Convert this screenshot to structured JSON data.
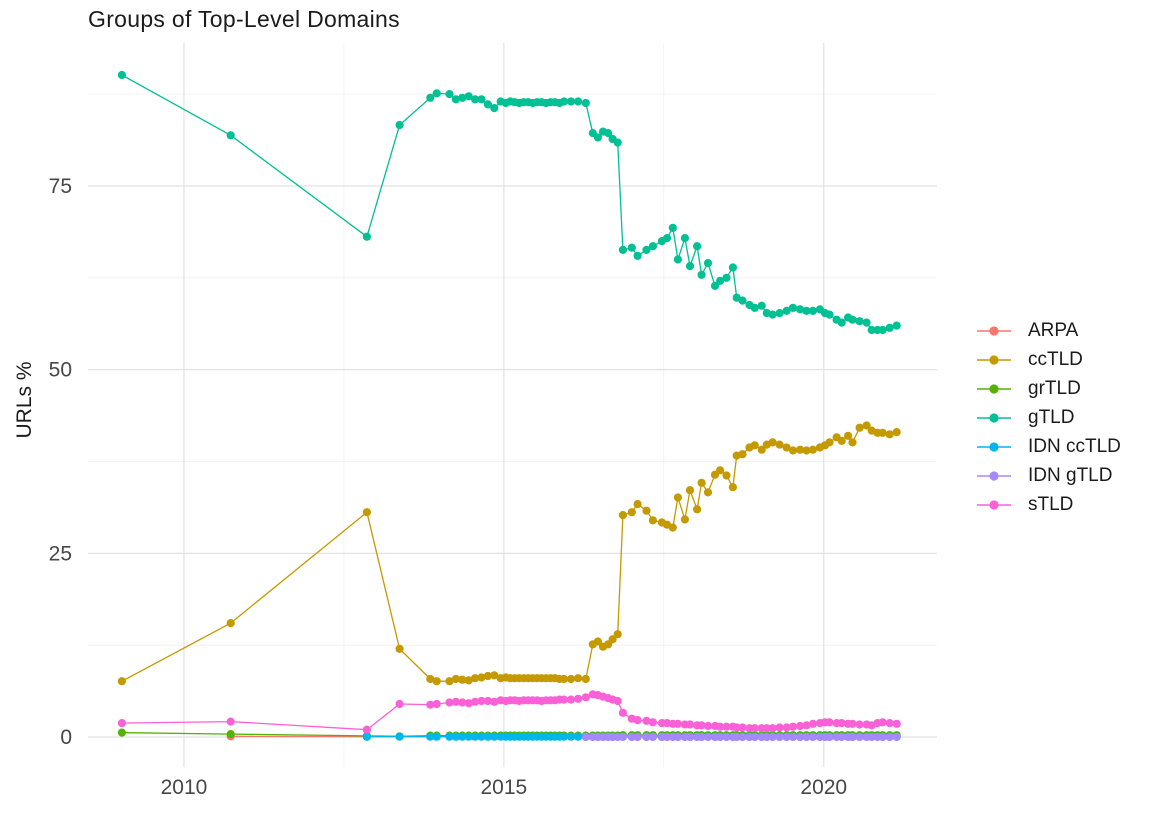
{
  "chart_data": {
    "type": "line",
    "title": "Groups of Top-Level Domains",
    "xlabel": "",
    "ylabel": "URLs %",
    "legend_position": "right",
    "grid": "major+minor",
    "colors": {
      "background": "#FFFFFF",
      "grid_major": "#E2E2E2",
      "grid_minor": "#F0F0F0",
      "tick_text": "#474747",
      "title_text": "#1B1B1B"
    },
    "x_axis": {
      "domain": [
        2008.5,
        2021.77
      ],
      "ticks": [
        {
          "value": 2010,
          "label": "2010"
        },
        {
          "value": 2015,
          "label": "2015"
        },
        {
          "value": 2020,
          "label": "2020"
        }
      ],
      "minor_ticks": [
        2012.5,
        2017.5
      ]
    },
    "y_axis": {
      "domain": [
        -4.08,
        94.46
      ],
      "ticks": [
        {
          "value": 0,
          "label": "0"
        },
        {
          "value": 25,
          "label": "25"
        },
        {
          "value": 50,
          "label": "50"
        },
        {
          "value": 75,
          "label": "75"
        }
      ],
      "minor_ticks": [
        12.5,
        37.5,
        62.5,
        87.5
      ]
    },
    "shared_x": [
      2009.03,
      2010.73,
      2012.86,
      2013.37,
      2013.85,
      2013.95,
      2014.15,
      2014.25,
      2014.35,
      2014.45,
      2014.55,
      2014.65,
      2014.75,
      2014.85,
      2014.95,
      2015.03,
      2015.1,
      2015.17,
      2015.24,
      2015.31,
      2015.38,
      2015.45,
      2015.52,
      2015.59,
      2015.66,
      2015.73,
      2015.8,
      2015.87,
      2015.94,
      2016.05,
      2016.16,
      2016.28,
      2016.39,
      2016.47,
      2016.55,
      2016.63,
      2016.7,
      2016.78,
      2016.86,
      2017.0,
      2017.09,
      2017.23,
      2017.33,
      2017.47,
      2017.55,
      2017.64,
      2017.72,
      2017.83,
      2017.91,
      2018.02,
      2018.09,
      2018.19,
      2018.3,
      2018.38,
      2018.48,
      2018.58,
      2018.64,
      2018.73,
      2018.84,
      2018.92,
      2019.03,
      2019.11,
      2019.2,
      2019.31,
      2019.42,
      2019.52,
      2019.63,
      2019.73,
      2019.83,
      2019.94,
      2020.02,
      2020.09,
      2020.2,
      2020.28,
      2020.38,
      2020.45,
      2020.56,
      2020.67,
      2020.75,
      2020.84,
      2020.92,
      2021.03,
      2021.14
    ],
    "series": [
      {
        "name": "ARPA",
        "color": "#F8766D",
        "x": [
          2010.73,
          2012.86
        ],
        "y": [
          0.1,
          0.05
        ]
      },
      {
        "name": "ccTLD",
        "color": "#C49A00",
        "start_index": 0,
        "y": [
          7.6,
          15.5,
          30.6,
          12.0,
          7.9,
          7.6,
          7.6,
          7.9,
          7.8,
          7.7,
          8.0,
          8.1,
          8.3,
          8.4,
          8.0,
          8.1,
          8.0,
          8.0,
          8.0,
          8.0,
          8.0,
          8.0,
          8.0,
          8.0,
          8.0,
          8.0,
          8.0,
          7.9,
          7.9,
          7.9,
          8.0,
          7.9,
          12.6,
          13.0,
          12.3,
          12.6,
          13.3,
          14.0,
          30.2,
          30.6,
          31.7,
          30.8,
          29.5,
          29.2,
          28.9,
          28.5,
          32.6,
          29.6,
          33.6,
          31.0,
          34.6,
          33.3,
          35.7,
          36.3,
          35.6,
          34.0,
          38.3,
          38.5,
          39.4,
          39.7,
          39.1,
          39.8,
          40.1,
          39.8,
          39.4,
          39.0,
          39.1,
          39.0,
          39.1,
          39.4,
          39.7,
          40.1,
          40.8,
          40.3,
          41.0,
          40.1,
          42.1,
          42.4,
          41.7,
          41.4,
          41.4,
          41.2,
          41.5
        ]
      },
      {
        "name": "grTLD",
        "color": "#53B400",
        "start_index": 0,
        "y": [
          0.6,
          0.4,
          0.15,
          0.1,
          0.2,
          0.2,
          0.2,
          0.2,
          0.2,
          0.2,
          0.2,
          0.2,
          0.2,
          0.2,
          0.2,
          0.2,
          0.2,
          0.2,
          0.2,
          0.2,
          0.2,
          0.2,
          0.2,
          0.2,
          0.2,
          0.2,
          0.2,
          0.2,
          0.2,
          0.2,
          0.2,
          0.2,
          0.2,
          0.2,
          0.2,
          0.2,
          0.2,
          0.2,
          0.25,
          0.25,
          0.25,
          0.25,
          0.25,
          0.25,
          0.25,
          0.25,
          0.25,
          0.25,
          0.25,
          0.25,
          0.25,
          0.25,
          0.25,
          0.25,
          0.25,
          0.25,
          0.25,
          0.25,
          0.25,
          0.25,
          0.25,
          0.25,
          0.25,
          0.25,
          0.25,
          0.25,
          0.25,
          0.25,
          0.25,
          0.25,
          0.25,
          0.25,
          0.25,
          0.25,
          0.25,
          0.25,
          0.25,
          0.25,
          0.25,
          0.25,
          0.25,
          0.25,
          0.25
        ]
      },
      {
        "name": "gTLD",
        "color": "#00C094",
        "start_index": 0,
        "y": [
          90.1,
          81.9,
          68.1,
          83.3,
          87.0,
          87.6,
          87.5,
          86.8,
          87.0,
          87.2,
          86.8,
          86.8,
          86.1,
          85.6,
          86.5,
          86.3,
          86.5,
          86.4,
          86.3,
          86.4,
          86.4,
          86.3,
          86.4,
          86.4,
          86.3,
          86.4,
          86.4,
          86.3,
          86.5,
          86.5,
          86.5,
          86.3,
          82.2,
          81.6,
          82.4,
          82.2,
          81.4,
          80.9,
          66.3,
          66.6,
          65.5,
          66.3,
          66.8,
          67.5,
          67.9,
          69.3,
          65.0,
          67.9,
          64.1,
          66.8,
          62.9,
          64.5,
          61.4,
          62.1,
          62.5,
          63.9,
          59.8,
          59.4,
          58.8,
          58.4,
          58.7,
          57.7,
          57.5,
          57.7,
          58.0,
          58.4,
          58.2,
          58.0,
          58.0,
          58.2,
          57.7,
          57.5,
          56.8,
          56.4,
          57.1,
          56.8,
          56.6,
          56.4,
          55.4,
          55.4,
          55.4,
          55.7,
          56.0
        ]
      },
      {
        "name": "IDN ccTLD",
        "color": "#00B6EB",
        "start_index": 2,
        "y_const": 0.05
      },
      {
        "name": "IDN gTLD",
        "color": "#A58AFF",
        "start_index": 31,
        "y_const": 0.0
      },
      {
        "name": "sTLD",
        "color": "#FB61D7",
        "start_index": 0,
        "y": [
          1.9,
          2.1,
          1.0,
          4.5,
          4.4,
          4.5,
          4.7,
          4.8,
          4.7,
          4.6,
          4.8,
          4.9,
          4.9,
          4.8,
          5.0,
          4.9,
          5.0,
          5.0,
          4.9,
          5.0,
          5.0,
          5.0,
          5.0,
          4.9,
          5.0,
          5.0,
          5.0,
          5.1,
          5.1,
          5.1,
          5.2,
          5.4,
          5.8,
          5.7,
          5.5,
          5.3,
          5.1,
          4.9,
          3.3,
          2.5,
          2.3,
          2.2,
          2.0,
          1.9,
          1.9,
          1.8,
          1.8,
          1.7,
          1.7,
          1.6,
          1.6,
          1.5,
          1.5,
          1.4,
          1.4,
          1.4,
          1.3,
          1.3,
          1.2,
          1.2,
          1.2,
          1.2,
          1.2,
          1.3,
          1.3,
          1.4,
          1.5,
          1.6,
          1.8,
          1.9,
          2.0,
          2.0,
          1.9,
          1.9,
          1.8,
          1.8,
          1.7,
          1.7,
          1.6,
          1.9,
          2.0,
          1.9,
          1.8
        ]
      }
    ],
    "legend_labels": [
      "ARPA",
      "ccTLD",
      "grTLD",
      "gTLD",
      "IDN ccTLD",
      "IDN gTLD",
      "sTLD"
    ]
  }
}
